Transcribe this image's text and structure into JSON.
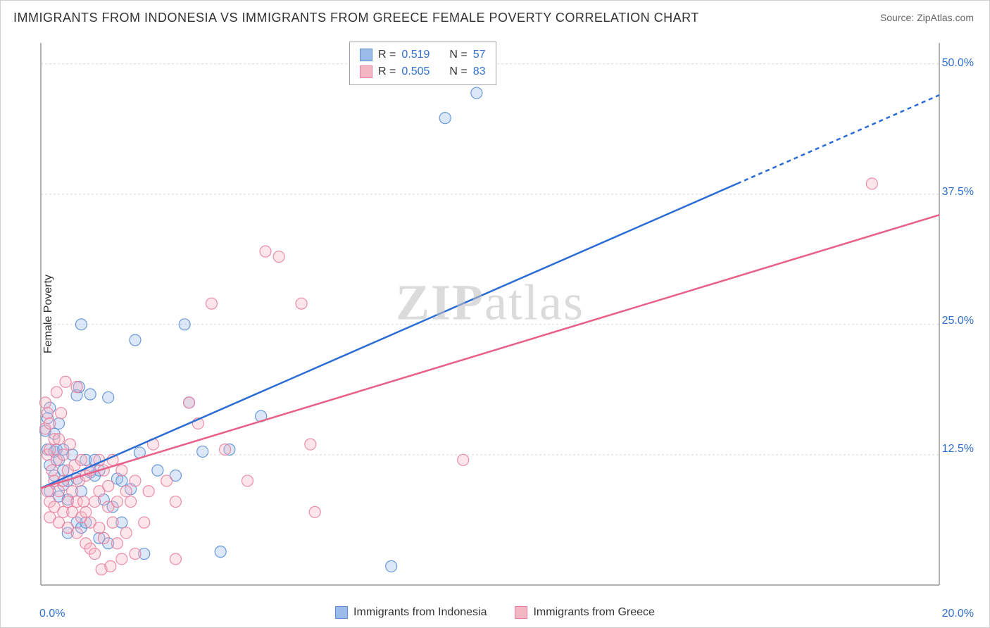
{
  "title": "IMMIGRANTS FROM INDONESIA VS IMMIGRANTS FROM GREECE FEMALE POVERTY CORRELATION CHART",
  "source_label": "Source: ",
  "source_name": "ZipAtlas.com",
  "ylabel": "Female Poverty",
  "watermark_bold": "ZIP",
  "watermark_rest": "atlas",
  "chart": {
    "type": "scatter-with-trend",
    "background_color": "#ffffff",
    "grid_color": "#d8d8d8",
    "axis_color": "#9a9a9a",
    "xlim": [
      0,
      20
    ],
    "ylim": [
      0,
      52
    ],
    "x_ticks": [
      {
        "val": 0,
        "label": "0.0%"
      },
      {
        "val": 20,
        "label": "20.0%"
      }
    ],
    "y_ticks": [
      {
        "val": 12.5,
        "label": "12.5%"
      },
      {
        "val": 25.0,
        "label": "25.0%"
      },
      {
        "val": 37.5,
        "label": "37.5%"
      },
      {
        "val": 50.0,
        "label": "50.0%"
      }
    ],
    "marker_radius": 8,
    "marker_fill_opacity": 0.35,
    "marker_stroke_opacity": 0.9,
    "marker_stroke_width": 1.2,
    "trend_line_width": 2.5,
    "trend_dash": "6,5",
    "series": [
      {
        "key": "indonesia",
        "label": "Immigrants from Indonesia",
        "color_fill": "#9bbce8",
        "color_stroke": "#5a8fd6",
        "line_color": "#2b6cd4",
        "R": "0.519",
        "N": "57",
        "trend": {
          "x1": 0,
          "y1": 9.3,
          "x2": 15.5,
          "y2": 38.5,
          "x_dash_to": 20,
          "y_dash_to": 47.0
        },
        "points": [
          [
            0.1,
            14.8
          ],
          [
            0.15,
            16.0
          ],
          [
            0.15,
            13.0
          ],
          [
            0.2,
            11.5
          ],
          [
            0.2,
            17.0
          ],
          [
            0.2,
            9.0
          ],
          [
            0.3,
            12.8
          ],
          [
            0.3,
            10.5
          ],
          [
            0.3,
            14.5
          ],
          [
            0.35,
            13.0
          ],
          [
            0.4,
            12.0
          ],
          [
            0.4,
            15.5
          ],
          [
            0.4,
            8.5
          ],
          [
            0.5,
            9.6
          ],
          [
            0.5,
            11.0
          ],
          [
            0.5,
            13.0
          ],
          [
            0.6,
            8.2
          ],
          [
            0.6,
            10.0
          ],
          [
            0.6,
            5.0
          ],
          [
            0.7,
            12.5
          ],
          [
            0.8,
            10.2
          ],
          [
            0.8,
            6.0
          ],
          [
            0.8,
            18.2
          ],
          [
            0.85,
            19.0
          ],
          [
            0.9,
            5.5
          ],
          [
            0.9,
            9.0
          ],
          [
            0.9,
            25.0
          ],
          [
            1.0,
            12.0
          ],
          [
            1.0,
            6.0
          ],
          [
            1.1,
            18.3
          ],
          [
            1.1,
            10.8
          ],
          [
            1.2,
            12.0
          ],
          [
            1.2,
            10.5
          ],
          [
            1.3,
            11.0
          ],
          [
            1.3,
            4.5
          ],
          [
            1.4,
            8.2
          ],
          [
            1.5,
            18.0
          ],
          [
            1.5,
            4.0
          ],
          [
            1.6,
            7.5
          ],
          [
            1.7,
            10.2
          ],
          [
            1.8,
            10.0
          ],
          [
            1.8,
            6.0
          ],
          [
            2.0,
            9.2
          ],
          [
            2.1,
            23.5
          ],
          [
            2.2,
            12.7
          ],
          [
            2.3,
            3.0
          ],
          [
            2.6,
            11.0
          ],
          [
            3.0,
            10.5
          ],
          [
            3.2,
            25.0
          ],
          [
            3.3,
            17.5
          ],
          [
            3.6,
            12.8
          ],
          [
            4.0,
            3.2
          ],
          [
            4.2,
            13.0
          ],
          [
            4.9,
            16.2
          ],
          [
            7.8,
            1.8
          ],
          [
            9.0,
            44.8
          ],
          [
            9.7,
            47.2
          ]
        ]
      },
      {
        "key": "greece",
        "label": "Immigrants from Greece",
        "color_fill": "#f5b6c4",
        "color_stroke": "#e97fa0",
        "line_color": "#e85f88",
        "R": "0.505",
        "N": "83",
        "trend": {
          "x1": 0,
          "y1": 9.3,
          "x2": 20,
          "y2": 35.5,
          "x_dash_to": 20,
          "y_dash_to": 35.5
        },
        "points": [
          [
            0.1,
            17.5
          ],
          [
            0.1,
            15.0
          ],
          [
            0.15,
            16.5
          ],
          [
            0.15,
            12.5
          ],
          [
            0.15,
            9.0
          ],
          [
            0.2,
            15.5
          ],
          [
            0.2,
            13.0
          ],
          [
            0.2,
            8.0
          ],
          [
            0.2,
            6.5
          ],
          [
            0.25,
            11.0
          ],
          [
            0.3,
            14.0
          ],
          [
            0.3,
            10.0
          ],
          [
            0.3,
            7.5
          ],
          [
            0.35,
            18.5
          ],
          [
            0.35,
            12.0
          ],
          [
            0.4,
            9.0
          ],
          [
            0.4,
            14.0
          ],
          [
            0.4,
            6.0
          ],
          [
            0.45,
            16.5
          ],
          [
            0.5,
            10.0
          ],
          [
            0.5,
            7.0
          ],
          [
            0.5,
            12.5
          ],
          [
            0.55,
            19.5
          ],
          [
            0.6,
            8.0
          ],
          [
            0.6,
            11.0
          ],
          [
            0.6,
            5.5
          ],
          [
            0.65,
            13.5
          ],
          [
            0.7,
            9.0
          ],
          [
            0.7,
            7.0
          ],
          [
            0.75,
            11.5
          ],
          [
            0.8,
            8.0
          ],
          [
            0.8,
            5.0
          ],
          [
            0.8,
            19.0
          ],
          [
            0.85,
            10.0
          ],
          [
            0.9,
            6.5
          ],
          [
            0.9,
            12.0
          ],
          [
            0.95,
            8.0
          ],
          [
            1.0,
            10.5
          ],
          [
            1.0,
            4.0
          ],
          [
            1.0,
            7.0
          ],
          [
            1.1,
            3.5
          ],
          [
            1.1,
            11.0
          ],
          [
            1.1,
            6.0
          ],
          [
            1.2,
            8.0
          ],
          [
            1.2,
            3.0
          ],
          [
            1.3,
            12.0
          ],
          [
            1.3,
            9.0
          ],
          [
            1.3,
            5.5
          ],
          [
            1.35,
            1.5
          ],
          [
            1.4,
            11.0
          ],
          [
            1.4,
            4.5
          ],
          [
            1.5,
            7.5
          ],
          [
            1.5,
            9.5
          ],
          [
            1.55,
            1.8
          ],
          [
            1.6,
            12.0
          ],
          [
            1.6,
            6.0
          ],
          [
            1.7,
            8.0
          ],
          [
            1.7,
            4.0
          ],
          [
            1.8,
            11.0
          ],
          [
            1.8,
            2.5
          ],
          [
            1.9,
            9.0
          ],
          [
            1.9,
            5.0
          ],
          [
            2.0,
            8.0
          ],
          [
            2.1,
            3.0
          ],
          [
            2.1,
            10.0
          ],
          [
            2.3,
            6.0
          ],
          [
            2.4,
            9.0
          ],
          [
            2.5,
            13.5
          ],
          [
            2.8,
            10.0
          ],
          [
            3.0,
            8.0
          ],
          [
            3.0,
            2.5
          ],
          [
            3.3,
            17.5
          ],
          [
            3.5,
            15.5
          ],
          [
            3.8,
            27.0
          ],
          [
            4.1,
            13.0
          ],
          [
            4.6,
            10.0
          ],
          [
            5.0,
            32.0
          ],
          [
            5.3,
            31.5
          ],
          [
            5.8,
            27.0
          ],
          [
            6.0,
            13.5
          ],
          [
            6.1,
            7.0
          ],
          [
            9.4,
            12.0
          ],
          [
            18.5,
            38.5
          ]
        ]
      }
    ]
  },
  "legend_stats": {
    "r_label": "R  = ",
    "n_label": "N  = "
  }
}
